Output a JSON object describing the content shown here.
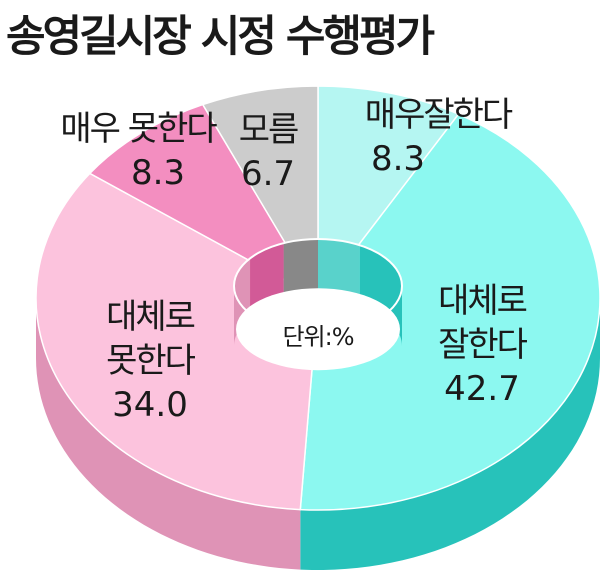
{
  "title": "송영길시장 시정 수행평가",
  "unit_label": "단위:%",
  "chart_data": {
    "type": "pie",
    "title": "송영길시장 시정 수행평가",
    "unit": "%",
    "slices": [
      {
        "label": "매우잘한다",
        "value": 8.3,
        "value_text": "8.3",
        "top_color": "#b5f6f2",
        "side_color": "#59d2cb"
      },
      {
        "label": "대체로 잘한다",
        "lines": [
          "대체로",
          "잘한다"
        ],
        "value": 42.7,
        "value_text": "42.7",
        "top_color": "#8cf8f0",
        "side_color": "#27c2ba"
      },
      {
        "label": "대체로 못한다",
        "lines": [
          "대체로",
          "못한다"
        ],
        "value": 34.0,
        "value_text": "34.0",
        "top_color": "#fcc3dd",
        "side_color": "#df93b6"
      },
      {
        "label": "매우 못한다",
        "value": 8.3,
        "value_text": "8.3",
        "top_color": "#f38ec0",
        "side_color": "#d25a97"
      },
      {
        "label": "모름",
        "value": 6.7,
        "value_text": "6.7",
        "top_color": "#cccccc",
        "side_color": "#888888"
      }
    ]
  }
}
